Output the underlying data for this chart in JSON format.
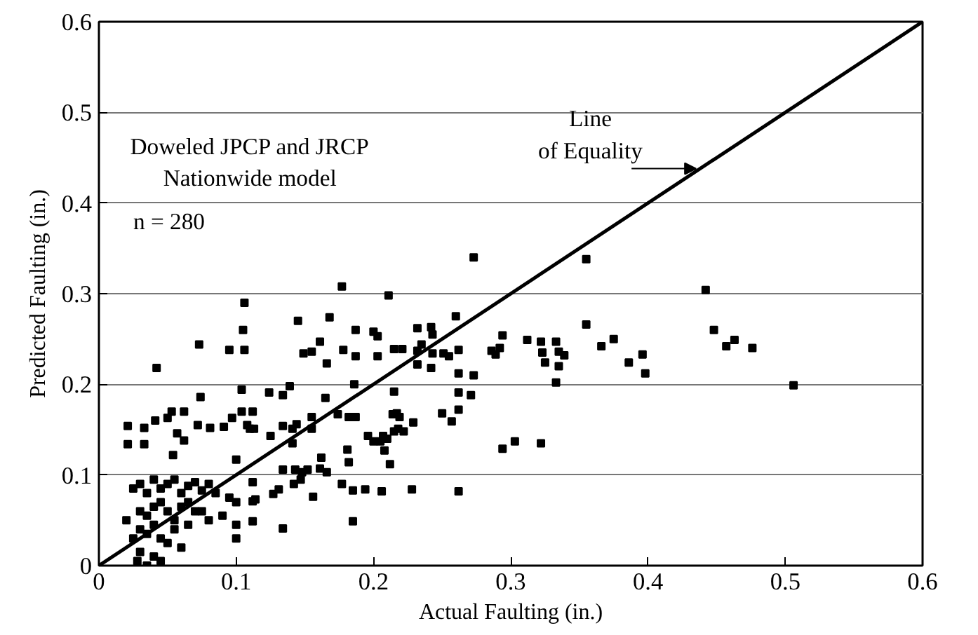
{
  "chart_data": {
    "type": "scatter",
    "xlabel": "Actual Faulting (in.)",
    "ylabel": "Predicted Faulting (in.)",
    "xlim": [
      0,
      0.6
    ],
    "ylim": [
      0,
      0.6
    ],
    "xticks": [
      0,
      0.1,
      0.2,
      0.3,
      0.4,
      0.5,
      0.6
    ],
    "yticks": [
      0,
      0.1,
      0.2,
      0.3,
      0.4,
      0.5,
      0.6
    ],
    "grid": "y",
    "marker": "square",
    "annotations": [
      "Doweled JPCP and JRCP\nNationwide model",
      "n = 280"
    ],
    "series": [
      {
        "color": "#000000",
        "x": [
          0.106,
          0.105,
          0.073,
          0.095,
          0.106,
          0.042,
          0.104,
          0.074,
          0.021,
          0.033,
          0.041,
          0.05,
          0.053,
          0.062,
          0.072,
          0.081,
          0.091,
          0.097,
          0.104,
          0.108,
          0.021,
          0.033,
          0.054,
          0.062,
          0.057,
          0.025,
          0.03,
          0.035,
          0.04,
          0.045,
          0.05,
          0.055,
          0.06,
          0.065,
          0.07,
          0.075,
          0.08,
          0.085,
          0.095,
          0.1,
          0.03,
          0.035,
          0.04,
          0.045,
          0.05,
          0.055,
          0.06,
          0.065,
          0.07,
          0.03,
          0.035,
          0.04,
          0.045,
          0.05,
          0.055,
          0.06,
          0.065,
          0.08,
          0.075,
          0.03,
          0.04,
          0.028,
          0.035,
          0.045,
          0.1,
          0.09,
          0.1,
          0.025,
          0.02,
          0.177,
          0.211,
          0.145,
          0.168,
          0.187,
          0.2,
          0.203,
          0.161,
          0.149,
          0.155,
          0.178,
          0.187,
          0.166,
          0.203,
          0.215,
          0.221,
          0.124,
          0.134,
          0.139,
          0.165,
          0.186,
          0.215,
          0.112,
          0.11,
          0.113,
          0.125,
          0.134,
          0.141,
          0.144,
          0.155,
          0.155,
          0.174,
          0.182,
          0.187,
          0.141,
          0.196,
          0.2,
          0.205,
          0.207,
          0.21,
          0.215,
          0.218,
          0.214,
          0.208,
          0.212,
          0.181,
          0.182,
          0.1,
          0.162,
          0.134,
          0.143,
          0.148,
          0.152,
          0.161,
          0.166,
          0.142,
          0.147,
          0.112,
          0.127,
          0.131,
          0.177,
          0.156,
          0.185,
          0.194,
          0.206,
          0.112,
          0.114,
          0.112,
          0.134,
          0.185,
          0.273,
          0.355,
          0.355,
          0.26,
          0.232,
          0.242,
          0.243,
          0.235,
          0.232,
          0.243,
          0.251,
          0.255,
          0.262,
          0.232,
          0.242,
          0.294,
          0.286,
          0.289,
          0.292,
          0.312,
          0.322,
          0.323,
          0.325,
          0.333,
          0.335,
          0.339,
          0.335,
          0.333,
          0.366,
          0.375,
          0.386,
          0.396,
          0.398,
          0.262,
          0.273,
          0.262,
          0.271,
          0.25,
          0.262,
          0.257,
          0.217,
          0.219,
          0.222,
          0.229,
          0.294,
          0.303,
          0.322,
          0.228,
          0.262,
          0.442,
          0.448,
          0.457,
          0.463,
          0.476,
          0.506
        ],
        "values": [
          0.29,
          0.26,
          0.244,
          0.238,
          0.238,
          0.218,
          0.194,
          0.186,
          0.154,
          0.152,
          0.16,
          0.163,
          0.17,
          0.17,
          0.155,
          0.152,
          0.153,
          0.163,
          0.17,
          0.155,
          0.134,
          0.134,
          0.122,
          0.138,
          0.146,
          0.085,
          0.09,
          0.08,
          0.095,
          0.085,
          0.09,
          0.095,
          0.08,
          0.088,
          0.092,
          0.083,
          0.09,
          0.08,
          0.075,
          0.07,
          0.06,
          0.055,
          0.065,
          0.07,
          0.06,
          0.05,
          0.065,
          0.07,
          0.06,
          0.04,
          0.035,
          0.045,
          0.03,
          0.025,
          0.04,
          0.02,
          0.045,
          0.05,
          0.06,
          0.015,
          0.01,
          0.005,
          0.0,
          0.005,
          0.045,
          0.055,
          0.03,
          0.03,
          0.05,
          0.308,
          0.298,
          0.27,
          0.274,
          0.26,
          0.258,
          0.253,
          0.247,
          0.234,
          0.236,
          0.238,
          0.231,
          0.223,
          0.231,
          0.239,
          0.239,
          0.191,
          0.188,
          0.198,
          0.185,
          0.2,
          0.192,
          0.17,
          0.151,
          0.151,
          0.143,
          0.154,
          0.151,
          0.156,
          0.151,
          0.164,
          0.167,
          0.164,
          0.164,
          0.135,
          0.143,
          0.137,
          0.137,
          0.143,
          0.14,
          0.148,
          0.151,
          0.167,
          0.127,
          0.112,
          0.128,
          0.114,
          0.117,
          0.119,
          0.106,
          0.106,
          0.103,
          0.106,
          0.107,
          0.103,
          0.09,
          0.095,
          0.092,
          0.079,
          0.084,
          0.09,
          0.076,
          0.083,
          0.084,
          0.082,
          0.071,
          0.073,
          0.049,
          0.041,
          0.049,
          0.34,
          0.338,
          0.266,
          0.275,
          0.262,
          0.263,
          0.255,
          0.244,
          0.237,
          0.234,
          0.234,
          0.231,
          0.238,
          0.222,
          0.218,
          0.254,
          0.237,
          0.233,
          0.24,
          0.249,
          0.247,
          0.235,
          0.224,
          0.247,
          0.236,
          0.232,
          0.22,
          0.202,
          0.242,
          0.25,
          0.224,
          0.233,
          0.212,
          0.212,
          0.21,
          0.191,
          0.188,
          0.168,
          0.172,
          0.159,
          0.168,
          0.164,
          0.148,
          0.158,
          0.129,
          0.137,
          0.135,
          0.084,
          0.082,
          0.304,
          0.26,
          0.242,
          0.249,
          0.24,
          0.199
        ]
      },
      {
        "type": "line",
        "name": "Line of Equality",
        "color": "#000000",
        "x": [
          0,
          0.6
        ],
        "values": [
          0,
          0.6
        ],
        "line_style": "solid",
        "marker": "none"
      }
    ]
  }
}
